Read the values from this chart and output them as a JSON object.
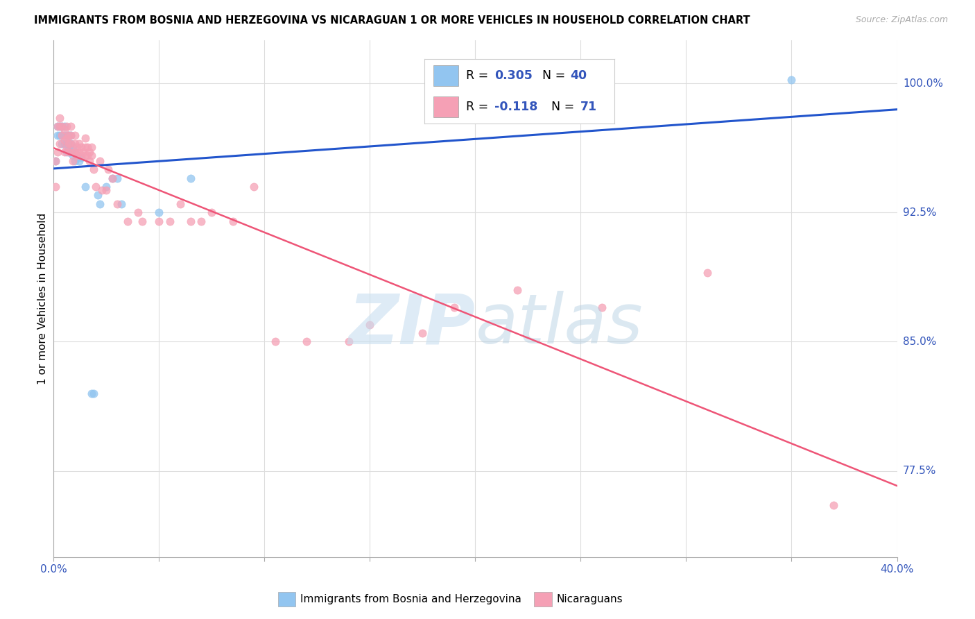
{
  "title": "IMMIGRANTS FROM BOSNIA AND HERZEGOVINA VS NICARAGUAN 1 OR MORE VEHICLES IN HOUSEHOLD CORRELATION CHART",
  "source": "Source: ZipAtlas.com",
  "ylabel": "1 or more Vehicles in Household",
  "xlim": [
    0.0,
    0.4
  ],
  "ylim": [
    0.725,
    1.025
  ],
  "right_ytick_positions": [
    1.0,
    0.925,
    0.85,
    0.775
  ],
  "right_ytick_labels": [
    "100.0%",
    "92.5%",
    "85.0%",
    "77.5%"
  ],
  "blue_color": "#92c5f0",
  "pink_color": "#f5a0b5",
  "trend_blue": "#2255cc",
  "trend_pink": "#ee5577",
  "bosnia_x": [
    0.001,
    0.002,
    0.002,
    0.003,
    0.003,
    0.004,
    0.004,
    0.004,
    0.005,
    0.005,
    0.005,
    0.006,
    0.006,
    0.006,
    0.007,
    0.007,
    0.007,
    0.007,
    0.008,
    0.008,
    0.008,
    0.009,
    0.009,
    0.01,
    0.01,
    0.011,
    0.012,
    0.013,
    0.015,
    0.018,
    0.019,
    0.021,
    0.022,
    0.025,
    0.028,
    0.03,
    0.032,
    0.05,
    0.065,
    0.35
  ],
  "bosnia_y": [
    0.955,
    0.97,
    0.975,
    0.97,
    0.975,
    0.97,
    0.975,
    0.965,
    0.965,
    0.97,
    0.975,
    0.96,
    0.965,
    0.97,
    0.96,
    0.963,
    0.965,
    0.97,
    0.96,
    0.965,
    0.97,
    0.958,
    0.962,
    0.955,
    0.96,
    0.957,
    0.955,
    0.957,
    0.94,
    0.82,
    0.82,
    0.935,
    0.93,
    0.94,
    0.945,
    0.945,
    0.93,
    0.925,
    0.945,
    1.002
  ],
  "nicaraguan_x": [
    0.001,
    0.001,
    0.002,
    0.002,
    0.003,
    0.003,
    0.003,
    0.004,
    0.004,
    0.005,
    0.005,
    0.005,
    0.006,
    0.006,
    0.006,
    0.007,
    0.007,
    0.007,
    0.008,
    0.008,
    0.008,
    0.009,
    0.009,
    0.01,
    0.01,
    0.01,
    0.011,
    0.011,
    0.012,
    0.012,
    0.013,
    0.013,
    0.014,
    0.015,
    0.015,
    0.015,
    0.016,
    0.016,
    0.017,
    0.017,
    0.018,
    0.018,
    0.019,
    0.02,
    0.022,
    0.023,
    0.025,
    0.026,
    0.028,
    0.03,
    0.035,
    0.04,
    0.042,
    0.05,
    0.055,
    0.06,
    0.065,
    0.07,
    0.075,
    0.085,
    0.095,
    0.105,
    0.12,
    0.14,
    0.15,
    0.175,
    0.19,
    0.22,
    0.26,
    0.31,
    0.37
  ],
  "nicaraguan_y": [
    0.94,
    0.955,
    0.96,
    0.975,
    0.965,
    0.975,
    0.98,
    0.97,
    0.975,
    0.96,
    0.967,
    0.973,
    0.963,
    0.968,
    0.975,
    0.965,
    0.97,
    0.96,
    0.965,
    0.97,
    0.975,
    0.96,
    0.955,
    0.96,
    0.965,
    0.97,
    0.958,
    0.963,
    0.96,
    0.965,
    0.958,
    0.963,
    0.96,
    0.958,
    0.963,
    0.968,
    0.958,
    0.963,
    0.955,
    0.96,
    0.958,
    0.963,
    0.95,
    0.94,
    0.955,
    0.938,
    0.938,
    0.95,
    0.945,
    0.93,
    0.92,
    0.925,
    0.92,
    0.92,
    0.92,
    0.93,
    0.92,
    0.92,
    0.925,
    0.92,
    0.94,
    0.85,
    0.85,
    0.85,
    0.86,
    0.855,
    0.87,
    0.88,
    0.87,
    0.89,
    0.755
  ]
}
